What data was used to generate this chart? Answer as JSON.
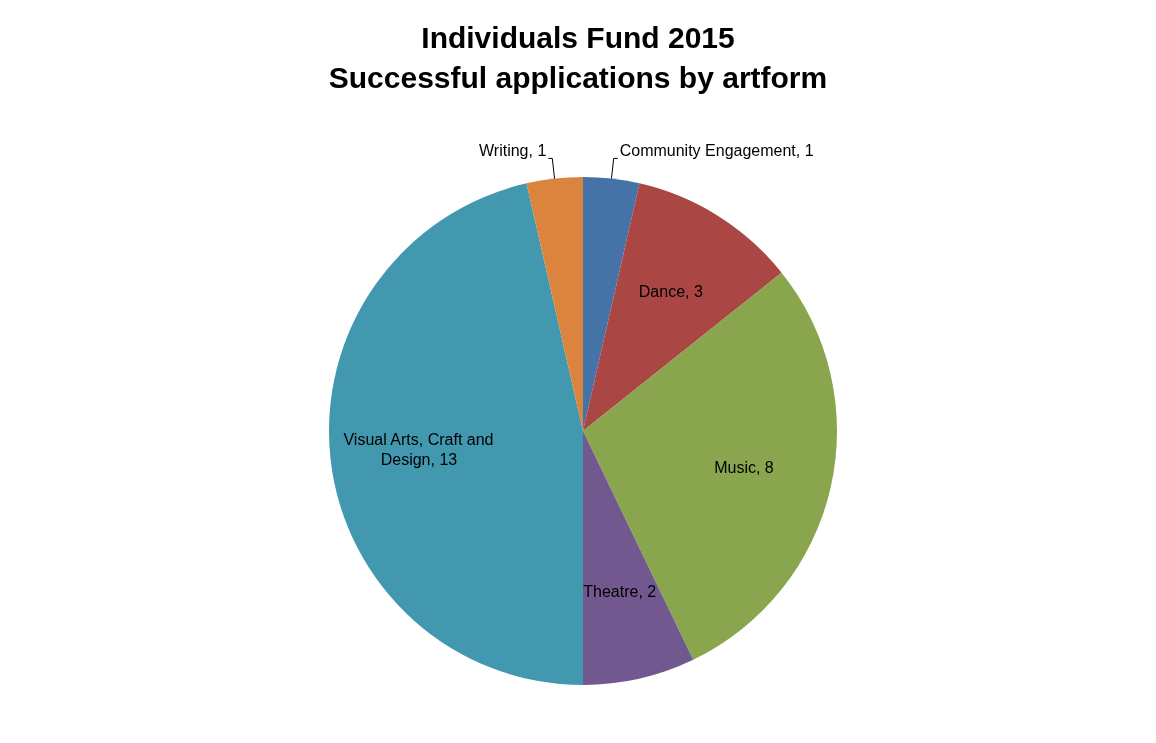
{
  "chart_data": {
    "type": "pie",
    "title": "Individuals Fund 2015\nSuccessful applications by artform",
    "categories": [
      "Community Engagement",
      "Dance",
      "Music",
      "Theatre",
      "Visual Arts, Craft and Design",
      "Writing"
    ],
    "values": [
      1,
      3,
      8,
      2,
      13,
      1
    ],
    "value_labels": [
      ", 1",
      ", 3",
      ", 8",
      ", 2",
      ", 13",
      ", 1"
    ],
    "colors": [
      "#4573a7",
      "#aa4643",
      "#89a54e",
      "#71588f",
      "#4198af",
      "#db843d"
    ],
    "data_labels": true
  }
}
